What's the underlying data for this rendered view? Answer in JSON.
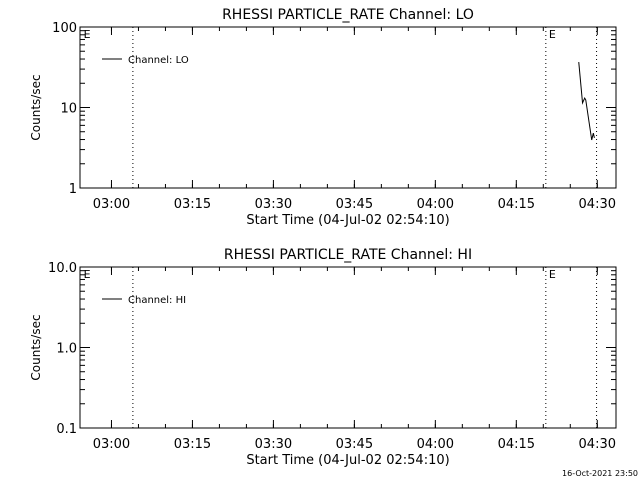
{
  "chart_data": [
    {
      "type": "line",
      "title": "RHESSI PARTICLE_RATE Channel: LO",
      "xlabel": "Start Time (04-Jul-02 02:54:10)",
      "ylabel": "Counts/sec",
      "yscale": "log",
      "ylim": [
        1,
        100
      ],
      "yticks": [
        {
          "v": 1,
          "label": "1"
        },
        {
          "v": 10,
          "label": "10"
        },
        {
          "v": 100,
          "label": "100"
        }
      ],
      "xlim_minutes": [
        0,
        99.3
      ],
      "xticks": [
        {
          "m": 5.83,
          "label": "03:00"
        },
        {
          "m": 20.83,
          "label": "03:15"
        },
        {
          "m": 35.83,
          "label": "03:30"
        },
        {
          "m": 50.83,
          "label": "03:45"
        },
        {
          "m": 65.83,
          "label": "04:00"
        },
        {
          "m": 80.83,
          "label": "04:15"
        },
        {
          "m": 95.83,
          "label": "04:30"
        }
      ],
      "vlines_minutes": [
        9.8,
        86.3,
        95.7
      ],
      "markers": [
        {
          "m": 0.3,
          "label": "E"
        },
        {
          "m": 86.5,
          "label": "E"
        }
      ],
      "legend": "Channel: LO",
      "legend_position": "top-left",
      "series": [
        {
          "name": "Channel: LO",
          "x_minutes": [
            92.4,
            93.1,
            93.5,
            93.7,
            94.8,
            95.1,
            95.3
          ],
          "values": [
            36.7,
            11.4,
            13.1,
            12.4,
            3.95,
            4.8,
            4.2
          ]
        }
      ]
    },
    {
      "type": "line",
      "title": "RHESSI PARTICLE_RATE Channel: HI",
      "xlabel": "Start Time (04-Jul-02 02:54:10)",
      "ylabel": "Counts/sec",
      "yscale": "log",
      "ylim": [
        0.1,
        10
      ],
      "yticks": [
        {
          "v": 0.1,
          "label": "0.1"
        },
        {
          "v": 1,
          "label": "1.0"
        },
        {
          "v": 10,
          "label": "10.0"
        }
      ],
      "xlim_minutes": [
        0,
        99.3
      ],
      "xticks": [
        {
          "m": 5.83,
          "label": "03:00"
        },
        {
          "m": 20.83,
          "label": "03:15"
        },
        {
          "m": 35.83,
          "label": "03:30"
        },
        {
          "m": 50.83,
          "label": "03:45"
        },
        {
          "m": 65.83,
          "label": "04:00"
        },
        {
          "m": 80.83,
          "label": "04:15"
        },
        {
          "m": 95.83,
          "label": "04:30"
        }
      ],
      "vlines_minutes": [
        9.8,
        86.3,
        95.7
      ],
      "markers": [
        {
          "m": 0.3,
          "label": "E"
        },
        {
          "m": 86.5,
          "label": "E"
        }
      ],
      "legend": "Channel: HI",
      "legend_position": "top-left",
      "series": [
        {
          "name": "Channel: HI",
          "x_minutes": [],
          "values": []
        }
      ]
    }
  ],
  "footer": {
    "timestamp": "16-Oct-2021 23:50"
  }
}
